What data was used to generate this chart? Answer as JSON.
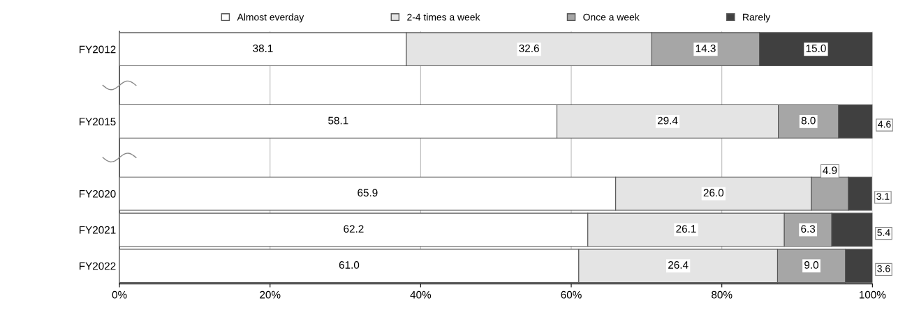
{
  "chart_data": {
    "type": "bar",
    "orientation": "horizontal",
    "stacked": true,
    "categories": [
      "FY2012",
      null,
      "FY2015",
      null,
      "FY2020",
      "FY2021",
      "FY2022"
    ],
    "series": [
      {
        "name": "Almost everday",
        "color": "#ffffff",
        "values": [
          38.1,
          null,
          58.1,
          null,
          65.9,
          62.2,
          61.0
        ],
        "value_labels": [
          "38.1",
          null,
          "58.1",
          null,
          "65.9",
          "62.2",
          "61.0"
        ]
      },
      {
        "name": "2-4 times a week",
        "color": "#e4e4e4",
        "values": [
          32.6,
          null,
          29.4,
          null,
          26.0,
          26.1,
          26.4
        ],
        "value_labels": [
          "32.6",
          null,
          "29.4",
          null,
          "26.0",
          "26.1",
          "26.4"
        ]
      },
      {
        "name": "Once a week",
        "color": "#a6a6a6",
        "values": [
          14.3,
          null,
          8.0,
          null,
          4.9,
          6.3,
          9.0
        ],
        "value_labels": [
          "14.3",
          null,
          "8.0",
          null,
          "4.9",
          "6.3",
          "9.0"
        ]
      },
      {
        "name": "Rarely",
        "color": "#404040",
        "values": [
          15.0,
          null,
          4.6,
          null,
          3.1,
          5.4,
          3.6
        ],
        "value_labels": [
          "15.0",
          null,
          "4.6",
          null,
          "3.1",
          "5.4",
          "3.6"
        ]
      }
    ],
    "xlim": [
      0,
      100
    ],
    "xticks": [
      {
        "value": 0,
        "label": "0%"
      },
      {
        "value": 20,
        "label": "20%"
      },
      {
        "value": 40,
        "label": "40%"
      },
      {
        "value": 60,
        "label": "60%"
      },
      {
        "value": 80,
        "label": "80%"
      },
      {
        "value": 100,
        "label": "100%"
      }
    ],
    "grid": "x",
    "legend": "top"
  }
}
